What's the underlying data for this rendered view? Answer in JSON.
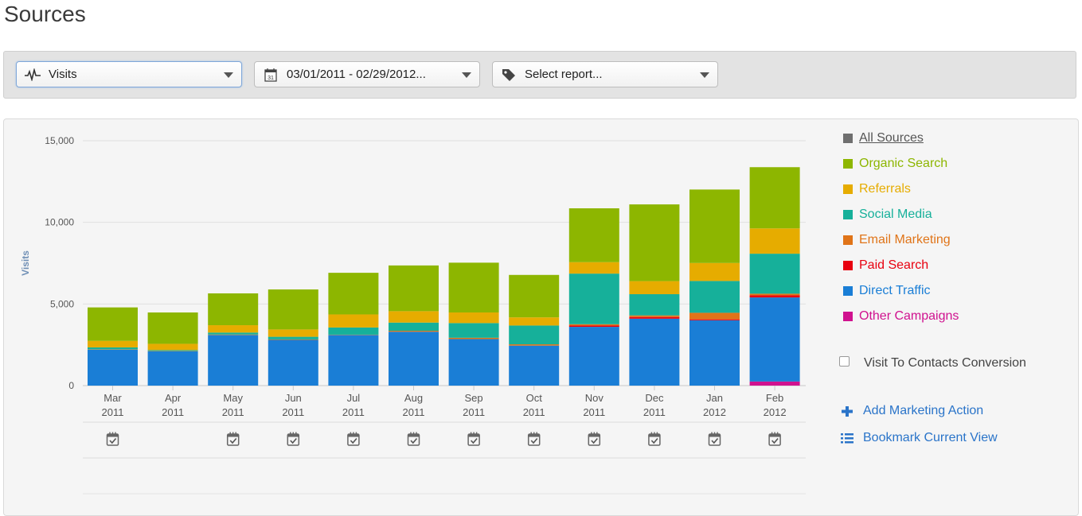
{
  "page": {
    "title": "Sources"
  },
  "toolbar": {
    "metric_select": {
      "value": "Visits",
      "icon": "pulse-icon"
    },
    "date_select": {
      "value": "03/01/2011 - 02/29/2012...",
      "icon": "calendar-icon",
      "icon_text": "31"
    },
    "report_select": {
      "value": "Select report...",
      "icon": "tag-icon"
    }
  },
  "legend": {
    "all": {
      "label": "All Sources",
      "color": "#6f6f6f"
    },
    "items": [
      {
        "label": "Organic Search",
        "color": "#8db600"
      },
      {
        "label": "Referrals",
        "color": "#e6ac00"
      },
      {
        "label": "Social Media",
        "color": "#16b09a"
      },
      {
        "label": "Email Marketing",
        "color": "#e07418"
      },
      {
        "label": "Paid Search",
        "color": "#e8000f"
      },
      {
        "label": "Direct Traffic",
        "color": "#1a7ed6"
      },
      {
        "label": "Other Campaigns",
        "color": "#d0128f"
      }
    ]
  },
  "options": {
    "conversion_label": "Visit To Contacts Conversion",
    "add_action_label": "Add Marketing Action",
    "bookmark_label": "Bookmark Current View"
  },
  "chart_data": {
    "type": "bar",
    "stacked": true,
    "ylabel": "Visits",
    "ylim": [
      0,
      15000
    ],
    "yticks": [
      "0",
      "5,000",
      "10,000",
      "15,000"
    ],
    "grid": true,
    "legend_position": "right",
    "categories": [
      [
        "Mar",
        "2011"
      ],
      [
        "Apr",
        "2011"
      ],
      [
        "May",
        "2011"
      ],
      [
        "Jun",
        "2011"
      ],
      [
        "Jul",
        "2011"
      ],
      [
        "Aug",
        "2011"
      ],
      [
        "Sep",
        "2011"
      ],
      [
        "Oct",
        "2011"
      ],
      [
        "Nov",
        "2011"
      ],
      [
        "Dec",
        "2011"
      ],
      [
        "Jan",
        "2012"
      ],
      [
        "Feb",
        "2012"
      ]
    ],
    "series": [
      {
        "name": "Other Campaigns",
        "color": "#d0128f",
        "values": [
          0,
          0,
          0,
          0,
          0,
          0,
          0,
          0,
          0,
          0,
          0,
          250
        ]
      },
      {
        "name": "Direct Traffic",
        "color": "#1a7ed6",
        "values": [
          2200,
          2100,
          3100,
          2800,
          3100,
          3300,
          2850,
          2450,
          3600,
          4100,
          4000,
          5150
        ]
      },
      {
        "name": "Paid Search",
        "color": "#e8000f",
        "values": [
          0,
          0,
          0,
          0,
          0,
          0,
          0,
          0,
          80,
          100,
          60,
          130
        ]
      },
      {
        "name": "Email Marketing",
        "color": "#e07418",
        "values": [
          20,
          20,
          30,
          30,
          20,
          60,
          80,
          80,
          80,
          100,
          400,
          100
        ]
      },
      {
        "name": "Social Media",
        "color": "#16b09a",
        "values": [
          120,
          60,
          120,
          160,
          440,
          500,
          900,
          1150,
          3100,
          1300,
          1950,
          2450
        ]
      },
      {
        "name": "Referrals",
        "color": "#e6ac00",
        "values": [
          400,
          380,
          450,
          450,
          800,
          700,
          650,
          500,
          700,
          800,
          1100,
          1550
        ]
      },
      {
        "name": "Organic Search",
        "color": "#8db600",
        "values": [
          2050,
          1920,
          1950,
          2450,
          2550,
          2800,
          3050,
          2600,
          3300,
          4700,
          4500,
          3750
        ]
      }
    ],
    "marker_icon": "calendar-check-icon",
    "markers": [
      true,
      false,
      true,
      true,
      true,
      true,
      true,
      true,
      true,
      true,
      true,
      true
    ]
  }
}
